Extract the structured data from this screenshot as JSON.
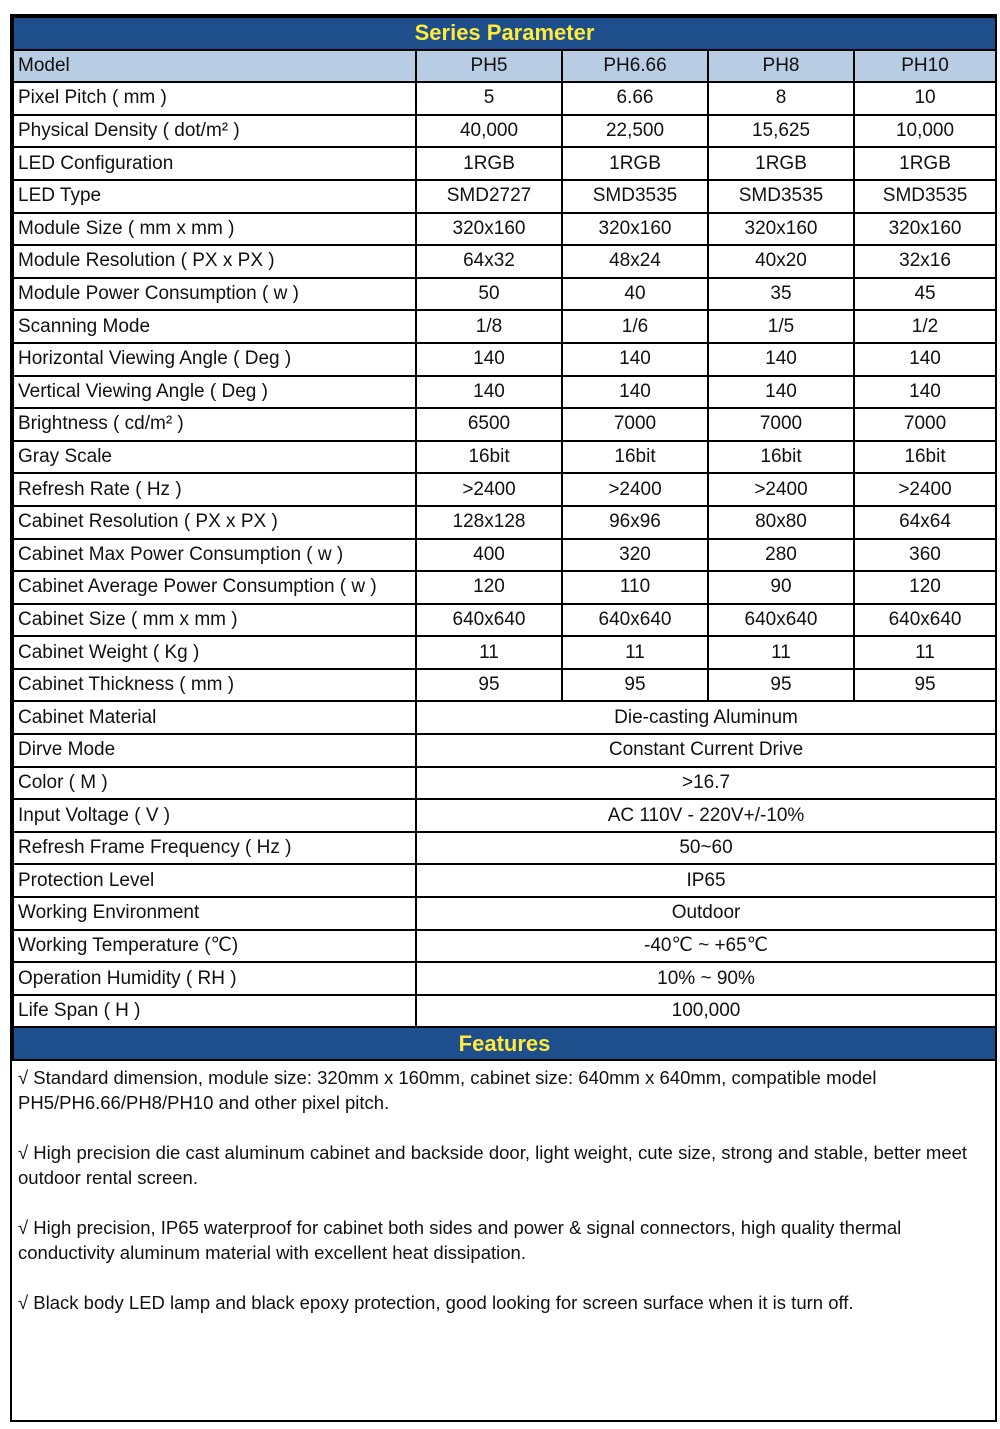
{
  "table": {
    "title": "Series Parameter",
    "header": [
      "Model",
      "PH5",
      "PH6.66",
      "PH8",
      "PH10"
    ],
    "rows": [
      [
        "Pixel Pitch ( mm )",
        "5",
        "6.66",
        "8",
        "10"
      ],
      [
        "Physical Density ( dot/m² )",
        "40,000",
        "22,500",
        "15,625",
        "10,000"
      ],
      [
        "LED Configuration",
        "1RGB",
        "1RGB",
        "1RGB",
        "1RGB"
      ],
      [
        "LED Type",
        "SMD2727",
        "SMD3535",
        "SMD3535",
        "SMD3535"
      ],
      [
        "Module Size ( mm x mm )",
        "320x160",
        "320x160",
        "320x160",
        "320x160"
      ],
      [
        "Module Resolution ( PX x PX )",
        "64x32",
        "48x24",
        "40x20",
        "32x16"
      ],
      [
        "Module Power Consumption ( w )",
        "50",
        "40",
        "35",
        "45"
      ],
      [
        "Scanning Mode",
        "1/8",
        "1/6",
        "1/5",
        "1/2"
      ],
      [
        "Horizontal Viewing Angle ( Deg )",
        "140",
        "140",
        "140",
        "140"
      ],
      [
        "Vertical Viewing Angle ( Deg )",
        "140",
        "140",
        "140",
        "140"
      ],
      [
        "Brightness ( cd/m² )",
        "6500",
        "7000",
        "7000",
        "7000"
      ],
      [
        "Gray Scale",
        "16bit",
        "16bit",
        "16bit",
        "16bit"
      ],
      [
        "Refresh Rate ( Hz )",
        ">2400",
        ">2400",
        ">2400",
        ">2400"
      ],
      [
        "Cabinet Resolution ( PX x PX )",
        "128x128",
        "96x96",
        "80x80",
        "64x64"
      ],
      [
        "Cabinet Max Power Consumption ( w )",
        "400",
        "320",
        "280",
        "360"
      ],
      [
        "Cabinet Average Power Consumption ( w )",
        "120",
        "110",
        "90",
        "120"
      ],
      [
        "Cabinet Size ( mm x mm )",
        "640x640",
        "640x640",
        "640x640",
        "640x640"
      ],
      [
        "Cabinet Weight ( Kg )",
        "11",
        "11",
        "11",
        "11"
      ],
      [
        "Cabinet Thickness ( mm )",
        "95",
        "95",
        "95",
        "95"
      ],
      [
        "Cabinet Material",
        "Die-casting Aluminum"
      ],
      [
        "Dirve Mode",
        "Constant Current Drive"
      ],
      [
        "Color ( M )",
        ">16.7"
      ],
      [
        "Input Voltage ( V )",
        "AC 110V - 220V+/-10%"
      ],
      [
        "Refresh Frame Frequency ( Hz )",
        "50~60"
      ],
      [
        "Protection Level",
        "IP65"
      ],
      [
        "Working Environment",
        "Outdoor"
      ],
      [
        "Working Temperature (℃)",
        "-40℃ ~ +65℃"
      ],
      [
        "Operation Humidity ( RH )",
        "10% ~ 90%"
      ],
      [
        "Life Span ( H )",
        "100,000"
      ]
    ]
  },
  "features": {
    "title": "Features",
    "items": [
      "√ Standard dimension, module size: 320mm x 160mm, cabinet size: 640mm x 640mm, compatible model PH5/PH6.66/PH8/PH10 and other pixel pitch.",
      "√ High precision die cast aluminum cabinet and backside door, light weight, cute size, strong and stable, better meet outdoor rental screen.",
      "√ High precision, IP65 waterproof for cabinet both sides and power & signal connectors, high quality thermal conductivity aluminum material with excellent heat dissipation.",
      "√ Black body LED lamp and black epoxy protection, good looking for screen surface when it is turn off."
    ]
  }
}
